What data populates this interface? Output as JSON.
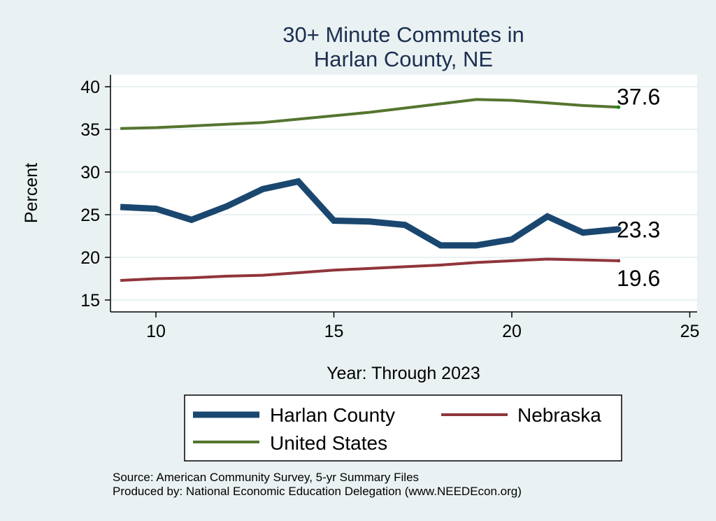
{
  "chart_data": {
    "type": "line",
    "title": [
      "30+ Minute Commutes in",
      "Harlan County, NE"
    ],
    "xlabel": "Year: Through 2023",
    "ylabel": "Percent",
    "xlim": [
      8.9,
      25.3
    ],
    "ylim": [
      14,
      41.3
    ],
    "xticks": [
      10,
      15,
      20,
      25
    ],
    "yticks": [
      15,
      20,
      25,
      30,
      35,
      40
    ],
    "grid": true,
    "legend_position": "bottom",
    "x": [
      9,
      10,
      11,
      12,
      13,
      14,
      15,
      16,
      17,
      18,
      19,
      20,
      21,
      22,
      23
    ],
    "series": [
      {
        "name": "Harlan County",
        "color": "#1a476f",
        "values": [
          25.9,
          25.7,
          24.4,
          26.0,
          28.0,
          28.9,
          24.3,
          24.2,
          23.8,
          21.4,
          21.4,
          22.1,
          24.8,
          22.9,
          23.3
        ],
        "end_label": "23.3"
      },
      {
        "name": "Nebraska",
        "color": "#90353b",
        "values": [
          17.3,
          17.5,
          17.6,
          17.8,
          17.9,
          18.2,
          18.5,
          18.7,
          18.9,
          19.1,
          19.4,
          19.6,
          19.8,
          19.7,
          19.6
        ],
        "end_label": "19.6"
      },
      {
        "name": "United States",
        "color": "#55752f",
        "values": [
          35.1,
          35.2,
          35.4,
          35.6,
          35.8,
          36.2,
          36.6,
          37.0,
          37.5,
          38.0,
          38.5,
          38.4,
          38.1,
          37.8,
          37.6
        ],
        "end_label": "37.6"
      }
    ]
  },
  "notes": [
    "Source: American Community Survey, 5-yr Summary Files",
    "Produced by: National Economic Education Delegation (www.NEEDEcon.org)"
  ]
}
